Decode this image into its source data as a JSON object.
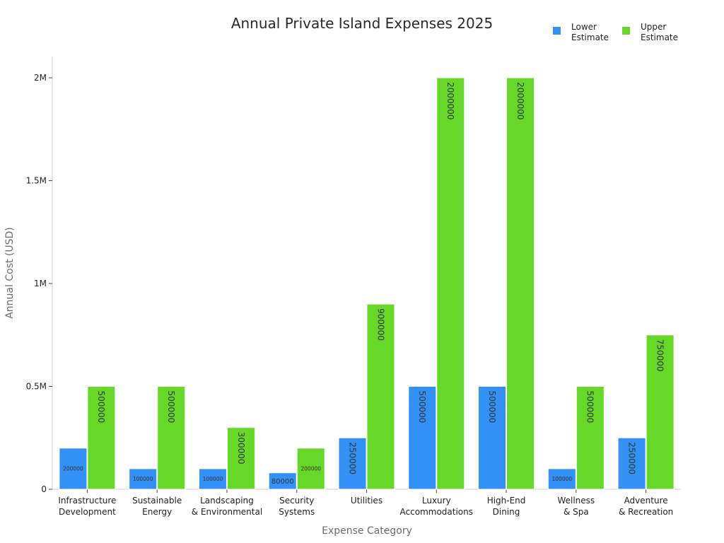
{
  "chart_data": {
    "type": "bar",
    "title": "Annual Private Island Expenses 2025",
    "xlabel": "Expense Category",
    "ylabel": "Annual Cost (USD)",
    "ylim": [
      0,
      2100000
    ],
    "y_ticks": [
      {
        "value": 0,
        "label": "0"
      },
      {
        "value": 500000,
        "label": "0.5M"
      },
      {
        "value": 1000000,
        "label": "1M"
      },
      {
        "value": 1500000,
        "label": "1.5M"
      },
      {
        "value": 2000000,
        "label": "2M"
      }
    ],
    "grid": false,
    "legend_position": "top-right",
    "categories": [
      [
        "Infrastructure",
        "Development"
      ],
      [
        "Sustainable",
        "Energy"
      ],
      [
        "Landscaping",
        "& Environmental"
      ],
      [
        "Security",
        "Systems"
      ],
      [
        "Utilities"
      ],
      [
        "Luxury",
        "Accommodations"
      ],
      [
        "High-End",
        "Dining"
      ],
      [
        "Wellness",
        "& Spa"
      ],
      [
        "Adventure",
        "& Recreation"
      ]
    ],
    "series": [
      {
        "name": [
          "Lower",
          "Estimate"
        ],
        "color": "#3391f5",
        "values": [
          200000,
          100000,
          100000,
          80000,
          250000,
          500000,
          500000,
          100000,
          250000
        ],
        "labels": [
          "200000",
          "100000",
          "100000",
          "80000",
          "250000",
          "500000",
          "500000",
          "100000",
          "250000"
        ]
      },
      {
        "name": [
          "Upper",
          "Estimate"
        ],
        "color": "#66d928",
        "values": [
          500000,
          500000,
          300000,
          200000,
          900000,
          2000000,
          2000000,
          500000,
          750000
        ],
        "labels": [
          "500000",
          "500000",
          "300000",
          "200000",
          "900000",
          "2000000",
          "2000000",
          "500000",
          "750000"
        ]
      }
    ]
  }
}
